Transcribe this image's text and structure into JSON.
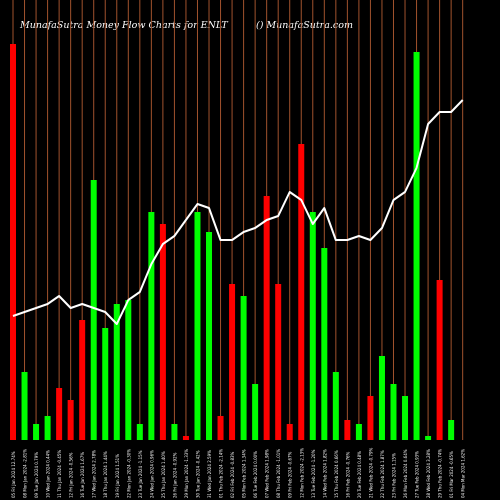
{
  "header": {
    "title": "MunafaSutra  Money Flow  Charts for ENLT",
    "site": "() MunafaSutra.com"
  },
  "colors": {
    "up": "#00ff00",
    "down": "#ff0000",
    "line": "#ffffff",
    "grid": "#a0522d",
    "background": "#000000"
  },
  "chart_data": {
    "type": "bar",
    "title": "MunafaSutra  Money Flow  Charts for ENLT",
    "categories": [
      "05 Fri Jan 2024",
      "08 Mon Jan 2024",
      "09 Tue Jan 2024",
      "10 Wed Jan 2024",
      "11 Thu Jan 2024",
      "12 Fri Jan 2024",
      "16 Tue Jan 2024",
      "17 Wed Jan 2024",
      "18 Thu Jan 2024",
      "19 Fri Jan 2024",
      "22 Mon Jan 2024",
      "23 Tue Jan 2024",
      "24 Wed Jan 2024",
      "25 Thu Jan 2024",
      "26 Fri Jan 2024",
      "29 Mon Jan 2024",
      "30 Tue Jan 2024",
      "31 Wed Jan 2024",
      "01 Thu Feb 2024",
      "02 Fri Feb 2024",
      "05 Mon Feb 2024",
      "06 Tue Feb 2024",
      "07 Wed Feb 2024",
      "08 Thu Feb 2024",
      "09 Fri Feb 2024",
      "12 Mon Feb 2024",
      "13 Tue Feb 2024",
      "14 Wed Feb 2024",
      "15 Thu Feb 2024",
      "16 Fri Feb 2024",
      "20 Tue Feb 2024",
      "21 Wed Feb 2024",
      "22 Thu Feb 2024",
      "23 Fri Feb 2024",
      "26 Mon Feb 2024",
      "27 Tue Feb 2024",
      "28 Wed Feb 2024",
      "29 Thu Feb 2024",
      "01 Fri Mar 2024",
      "04 Mon Mar 2024"
    ],
    "x_labels": [
      "05 Fri Jan 2024 12.74%",
      "08 Mon Jan 2024 -2.81%",
      "09 Tue Jan 2024 0.79%",
      "10 Wed Jan 2024 0.44%",
      "11 Thu Jan 2024 -0.45%",
      "12 Fri Jan 2024 -0.56%",
      "16 Tue Jan 2024 1.67%",
      "17 Wed Jan 2024 2.78%",
      "18 Thu Jan 2024 1.44%",
      "19 Fri Jan 2024 1.51%",
      "22 Mon Jan 2024 -0.30%",
      "23 Tue Jan 2024 -1.15%",
      "24 Wed Jan 2024 0.96%",
      "25 Thu Jan 2024 1.40%",
      "26 Fri Jan 2024 -0.92%",
      "29 Mon Jan 2024 -1.33%",
      "30 Tue Jan 2024 -0.42%",
      "31 Wed Jan 2024 2.59%",
      "01 Thu Feb 2024 -2.14%",
      "02 Fri Feb 2024 -0.83%",
      "05 Mon Feb 2024 1.34%",
      "06 Tue Feb 2024 0.00%",
      "07 Wed Feb 2024 1.98%",
      "08 Thu Feb 2024 -1.01%",
      "09 Fri Feb 2024 -0.67%",
      "12 Mon Feb 2024 -2.13%",
      "13 Tue Feb 2024 -1.20%",
      "14 Wed Feb 2024 1.82%",
      "15 Thu Feb 2024 0.66%",
      "16 Fri Feb 2024 -0.76%",
      "20 Tue Feb 2024 0.48%",
      "21 Wed Feb 2024 -0.79%",
      "22 Thu Feb 2024 1.87%",
      "23 Fri Feb 2024 1.15%",
      "26 Mon Feb 2024 0.64%",
      "27 Tue Feb 2024 0.93%",
      "28 Wed Feb 2024 3.28%",
      "29 Thu Feb 2024 -0.74%",
      "01 Fri Mar 2024 -0.65%",
      "04 Mon Mar 2024 1.62%"
    ],
    "series": [
      {
        "values": [
          99,
          17,
          4,
          6,
          13,
          10,
          30,
          65,
          28,
          34,
          35,
          4,
          57,
          54,
          4,
          1,
          57,
          52,
          6,
          39,
          36,
          14,
          61,
          39,
          4,
          74,
          57,
          48,
          17,
          5,
          4,
          11,
          21,
          14,
          11,
          97,
          1,
          40,
          5,
          0
        ],
        "directions": [
          "down",
          "up",
          "up",
          "up",
          "down",
          "down",
          "down",
          "up",
          "up",
          "up",
          "up",
          "up",
          "up",
          "down",
          "up",
          "down",
          "up",
          "up",
          "down",
          "down",
          "up",
          "up",
          "down",
          "down",
          "down",
          "down",
          "up",
          "up",
          "up",
          "down",
          "up",
          "down",
          "up",
          "up",
          "up",
          "up",
          "up",
          "down",
          "up",
          "up"
        ]
      },
      {
        "values": [
          31,
          32,
          33,
          34,
          36,
          33,
          34,
          33,
          32,
          29,
          35,
          37,
          44,
          49,
          51,
          55,
          59,
          58,
          50,
          50,
          52,
          53,
          55,
          56,
          62,
          60,
          54,
          58,
          50,
          50,
          51,
          50,
          53,
          60,
          62,
          68,
          79,
          82,
          82,
          85
        ]
      }
    ],
    "ylim": [
      0,
      100
    ],
    "grid": true
  }
}
